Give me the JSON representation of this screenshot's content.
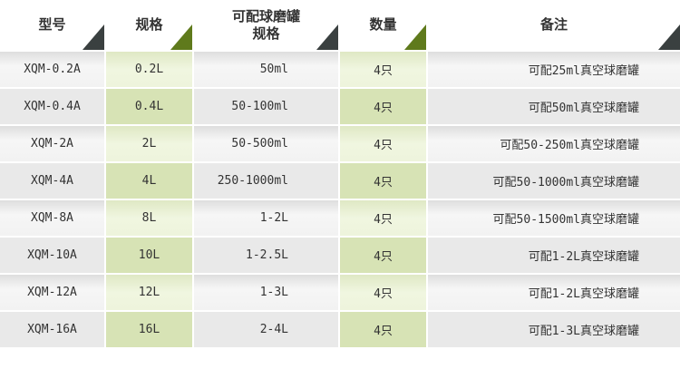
{
  "headers": [
    "型号",
    "规格",
    "可配球磨罐规格",
    "数量",
    "备注"
  ],
  "rows": [
    [
      "XQM-0.2A",
      "0.2L",
      "50ml",
      "4只",
      "可配25ml真空球磨罐"
    ],
    [
      "XQM-0.4A",
      "0.4L",
      "50-100ml",
      "4只",
      "可配50ml真空球磨罐"
    ],
    [
      "XQM-2A",
      "2L",
      "50-500ml",
      "4只",
      "可配50-250ml真空球磨罐"
    ],
    [
      "XQM-4A",
      "4L",
      "250-1000ml",
      "4只",
      "可配50-1000ml真空球磨罐"
    ],
    [
      "XQM-8A",
      "8L",
      "1-2L",
      "4只",
      "可配50-1500ml真空球磨罐"
    ],
    [
      "XQM-10A",
      "10L",
      "1-2.5L",
      "4只",
      "可配1-2L真空球磨罐"
    ],
    [
      "XQM-12A",
      "12L",
      "1-3L",
      "4只",
      "可配1-2L真空球磨罐"
    ],
    [
      "XQM-16A",
      "16L",
      "2-4L",
      "4只",
      "可配1-3L真空球磨罐"
    ]
  ]
}
